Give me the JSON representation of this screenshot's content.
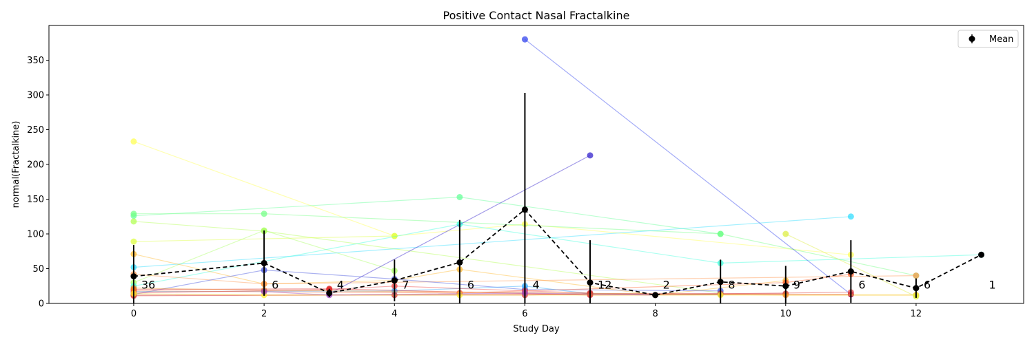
{
  "chart_data": {
    "type": "line",
    "title": "Positive Contact Nasal Fractalkine",
    "xlabel": "Study Day",
    "ylabel": "normal(Fractalkine)",
    "xlim": [
      -1.3,
      13.65
    ],
    "ylim": [
      0,
      400
    ],
    "xticks": [
      0,
      2,
      4,
      6,
      8,
      10,
      12
    ],
    "yticks": [
      0,
      50,
      100,
      150,
      200,
      250,
      300,
      350
    ],
    "grid": false,
    "legend": {
      "position": "top-right",
      "entries": [
        "Mean"
      ]
    },
    "subjects": [
      {
        "color": "#ffff55",
        "points": [
          [
            0,
            233
          ],
          [
            4,
            97
          ],
          [
            6,
            114
          ],
          [
            11,
            70
          ]
        ]
      },
      {
        "color": "#66ff99",
        "points": [
          [
            0,
            126
          ],
          [
            5,
            153
          ],
          [
            9,
            100
          ]
        ]
      },
      {
        "color": "#77ff88",
        "points": [
          [
            0,
            129
          ],
          [
            2,
            129
          ],
          [
            9,
            100
          ],
          [
            12,
            40
          ]
        ]
      },
      {
        "color": "#b3ff55",
        "points": [
          [
            0,
            118
          ],
          [
            2,
            104
          ],
          [
            9,
            15
          ]
        ]
      },
      {
        "color": "#ddff44",
        "points": [
          [
            0,
            89
          ],
          [
            4,
            97
          ]
        ]
      },
      {
        "color": "#aaff66",
        "points": [
          [
            0,
            30
          ],
          [
            2,
            105
          ],
          [
            4,
            47
          ]
        ]
      },
      {
        "color": "#33ddff",
        "points": [
          [
            0,
            52
          ],
          [
            11,
            125
          ]
        ]
      },
      {
        "color": "#44ffdd",
        "points": [
          [
            0,
            25
          ],
          [
            5,
            114
          ],
          [
            9,
            58
          ],
          [
            13,
            70
          ]
        ]
      },
      {
        "color": "#ffbb33",
        "points": [
          [
            0,
            71
          ],
          [
            2,
            28
          ],
          [
            4,
            33
          ],
          [
            5,
            49
          ],
          [
            8,
            12
          ],
          [
            10,
            33
          ]
        ]
      },
      {
        "color": "#ff9955",
        "points": [
          [
            0,
            42
          ],
          [
            2,
            28
          ],
          [
            12,
            40
          ]
        ]
      },
      {
        "color": "#3344ee",
        "points": [
          [
            6,
            380
          ],
          [
            11,
            13
          ]
        ]
      },
      {
        "color": "#3322cc",
        "points": [
          [
            3,
            14
          ],
          [
            7,
            213
          ]
        ]
      },
      {
        "color": "#4455dd",
        "points": [
          [
            0,
            13
          ],
          [
            2,
            48
          ],
          [
            4,
            35
          ],
          [
            6,
            20
          ],
          [
            9,
            18
          ]
        ]
      },
      {
        "color": "#33aaff",
        "points": [
          [
            0,
            17
          ],
          [
            4,
            18
          ],
          [
            6,
            25
          ],
          [
            7,
            14
          ],
          [
            9,
            13
          ]
        ]
      },
      {
        "color": "#ee4444",
        "points": [
          [
            0,
            15
          ],
          [
            3,
            20
          ],
          [
            4,
            25
          ],
          [
            6,
            18
          ],
          [
            7,
            15
          ]
        ]
      },
      {
        "color": "#dd2222",
        "points": [
          [
            0,
            20
          ],
          [
            3,
            21
          ],
          [
            7,
            12
          ],
          [
            11,
            13
          ]
        ]
      },
      {
        "color": "#cc3333",
        "points": [
          [
            0,
            12
          ],
          [
            4,
            12
          ],
          [
            6,
            12
          ],
          [
            7,
            14
          ],
          [
            10,
            14
          ]
        ]
      },
      {
        "color": "#ff6633",
        "points": [
          [
            0,
            18
          ],
          [
            5,
            15
          ],
          [
            10,
            30
          ],
          [
            11,
            42
          ]
        ]
      },
      {
        "color": "#ee8822",
        "points": [
          [
            0,
            22
          ],
          [
            2,
            19
          ],
          [
            10,
            12
          ],
          [
            12,
            12
          ]
        ]
      },
      {
        "color": "#dd4444",
        "points": [
          [
            0,
            11
          ],
          [
            9,
            14
          ],
          [
            11,
            16
          ]
        ]
      },
      {
        "color": "#ffee33",
        "points": [
          [
            0,
            14
          ],
          [
            2,
            12
          ],
          [
            5,
            12
          ],
          [
            9,
            12
          ],
          [
            12,
            12
          ]
        ]
      },
      {
        "color": "#ddee44",
        "points": [
          [
            10,
            100
          ],
          [
            12,
            10
          ]
        ]
      },
      {
        "color": "#9944bb",
        "points": [
          [
            2,
            17
          ],
          [
            3,
            12
          ],
          [
            6,
            15
          ],
          [
            8,
            12
          ]
        ]
      }
    ],
    "mean": {
      "name": "Mean",
      "color": "#000000",
      "x": [
        0,
        2,
        3,
        4,
        5,
        6,
        7,
        8,
        9,
        10,
        11,
        12,
        13
      ],
      "y": [
        39,
        58,
        15,
        33,
        59,
        135,
        30,
        12,
        31,
        25,
        46,
        22,
        70
      ],
      "err": [
        45,
        47,
        6,
        30,
        61,
        168,
        61,
        0,
        32,
        29,
        45,
        14,
        0
      ]
    },
    "counts": [
      {
        "x": 0,
        "label": "36"
      },
      {
        "x": 2,
        "label": "6"
      },
      {
        "x": 3,
        "label": "4"
      },
      {
        "x": 4,
        "label": "7"
      },
      {
        "x": 5,
        "label": "6"
      },
      {
        "x": 6,
        "label": "4"
      },
      {
        "x": 7,
        "label": "12"
      },
      {
        "x": 8,
        "label": "2"
      },
      {
        "x": 9,
        "label": "8"
      },
      {
        "x": 10,
        "label": "9"
      },
      {
        "x": 11,
        "label": "6"
      },
      {
        "x": 12,
        "label": "6"
      },
      {
        "x": 13,
        "label": "1"
      }
    ],
    "counts_y": 27
  }
}
